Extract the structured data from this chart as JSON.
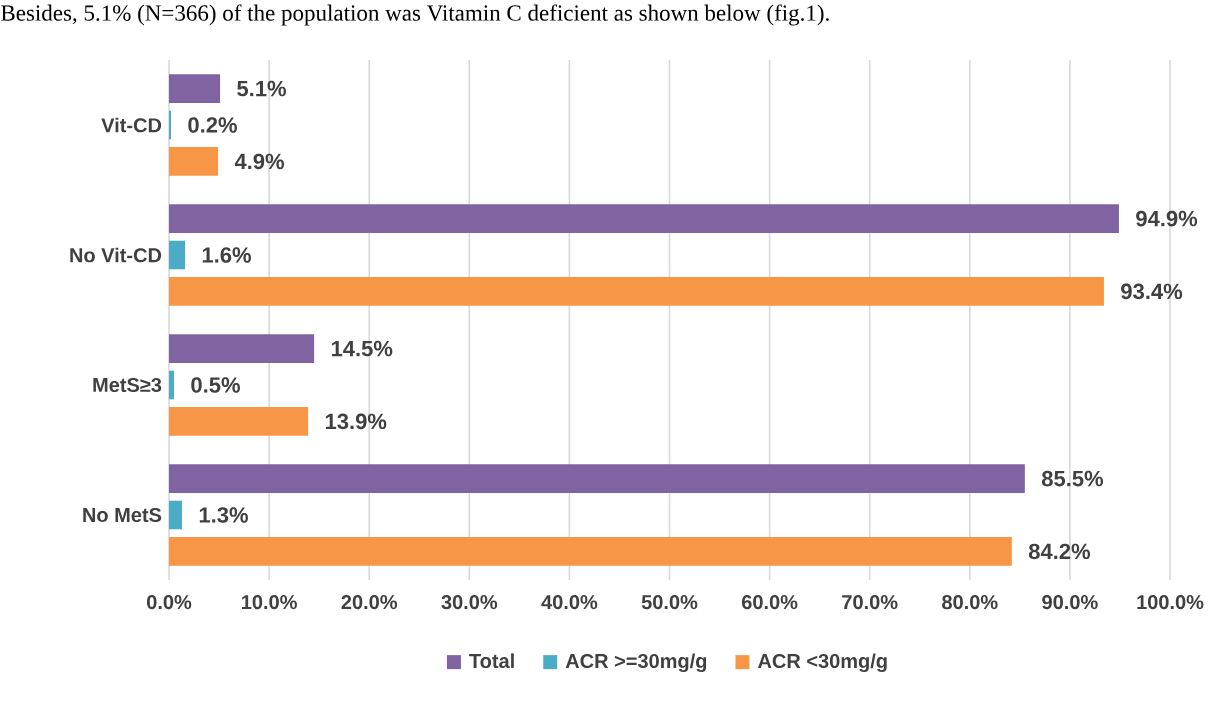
{
  "chart_data": {
    "type": "bar",
    "orientation": "horizontal",
    "annotations": [
      "Besides, 5.1% (N=366) of the population was Vitamin C deficient as shown below (fig.1)."
    ],
    "categories": [
      "Vit-CD",
      "No Vit-CD",
      "MetS≥3",
      "No MetS"
    ],
    "series": [
      {
        "name": "Total",
        "color": "#8064a2",
        "values": [
          5.1,
          94.9,
          14.5,
          85.5
        ],
        "value_labels": [
          "5.1%",
          "94.9%",
          "14.5%",
          "85.5%"
        ]
      },
      {
        "name": "ACR >=30mg/g",
        "color": "#4bacc6",
        "values": [
          0.2,
          1.6,
          0.5,
          1.3
        ],
        "value_labels": [
          "0.2%",
          "1.6%",
          "0.5%",
          "1.3%"
        ]
      },
      {
        "name": "ACR <30mg/g",
        "color": "#f79646",
        "values": [
          4.9,
          93.4,
          13.9,
          84.2
        ],
        "value_labels": [
          "4.9%",
          "93.4%",
          "13.9%",
          "84.2%"
        ]
      }
    ],
    "xlim": [
      0,
      100
    ],
    "xticks": [
      {
        "value": 0,
        "label": "0.0%"
      },
      {
        "value": 10,
        "label": "10.0%"
      },
      {
        "value": 20,
        "label": "20.0%"
      },
      {
        "value": 30,
        "label": "30.0%"
      },
      {
        "value": 40,
        "label": "40.0%"
      },
      {
        "value": 50,
        "label": "50.0%"
      },
      {
        "value": 60,
        "label": "60.0%"
      },
      {
        "value": 70,
        "label": "70.0%"
      },
      {
        "value": 80,
        "label": "80.0%"
      },
      {
        "value": 90,
        "label": "90.0%"
      },
      {
        "value": 100,
        "label": "100.0%"
      }
    ],
    "grid": "x",
    "legend": "bottom"
  }
}
